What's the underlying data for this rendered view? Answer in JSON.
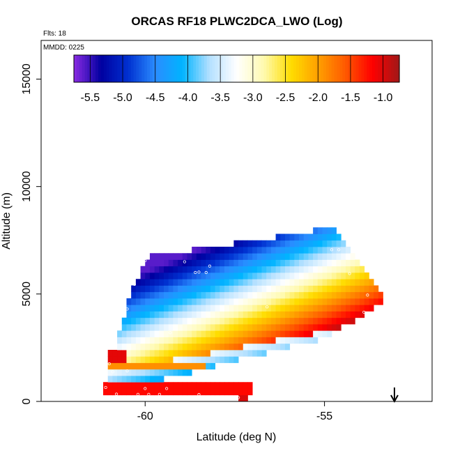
{
  "chart_data": {
    "type": "heatmap",
    "title": "ORCAS RF18 PLWC2DCA_LWO (Log)",
    "annotation_flights": "Flts: 18",
    "annotation_date": "MMDD: 0225",
    "xlabel": "Latitude (deg N)",
    "ylabel": "Altitude (m)",
    "xlim": [
      -62.9,
      -52.0
    ],
    "ylim": [
      0,
      16800
    ],
    "x_ticks": [
      -60,
      -55
    ],
    "x_tick_labels": [
      "-60",
      "-55"
    ],
    "y_ticks": [
      0,
      5000,
      10000,
      15000
    ],
    "y_tick_labels": [
      "0",
      "5000",
      "10000",
      "15000"
    ],
    "colorbar": {
      "min": -5.75,
      "max": -0.75,
      "ticks": [
        -5.5,
        -5.0,
        -4.5,
        -4.0,
        -3.5,
        -3.0,
        -2.5,
        -2.0,
        -1.5,
        -1.0
      ],
      "tick_labels": [
        "-5.5",
        "-5.0",
        "-4.5",
        "-4.0",
        "-3.5",
        "-3.0",
        "-2.5",
        "-2.0",
        "-1.5",
        "-1.0"
      ],
      "stops": [
        "#8a2be2",
        "#0000a0",
        "#0030d0",
        "#2a8cff",
        "#00b4ff",
        "#b4e0ff",
        "#ffffff",
        "#fffab0",
        "#ffdd00",
        "#ffa000",
        "#ff5a00",
        "#ff0000",
        "#a01818"
      ]
    },
    "grid": false,
    "legend": "top",
    "marker_arrow_lat": -53.05,
    "cell_size": {
      "lat": 0.13,
      "alt": 300
    },
    "cloud_region": {
      "top_left": [
        -60.0,
        6700
      ],
      "top_right": [
        -54.7,
        8100
      ],
      "nose": [
        -53.3,
        4700
      ],
      "bottom_right": [
        -54.9,
        3000
      ],
      "bottom_left": [
        -61.2,
        300
      ],
      "left_bulge": [
        -60.5,
        4500
      ],
      "colder_top": -5.6,
      "warm_tail": -0.9,
      "axis_slope_lat": [
        -60.3,
        -53.3
      ],
      "axis_slope_alt": [
        2500,
        4700
      ]
    },
    "low_level_bands": [
      {
        "lat": [
          -61.2,
          -57.0
        ],
        "alt": [
          300,
          900
        ],
        "value": -1.2
      },
      {
        "lat": [
          -61.0,
          -58.3
        ],
        "alt": [
          1400,
          1700
        ],
        "value": -1.9
      },
      {
        "lat": [
          -61.0,
          -60.5
        ],
        "alt": [
          1700,
          2500
        ],
        "value": -1.05
      },
      {
        "lat": [
          -57.4,
          -57.2
        ],
        "alt": [
          0,
          300
        ],
        "value": -1.0
      }
    ]
  }
}
